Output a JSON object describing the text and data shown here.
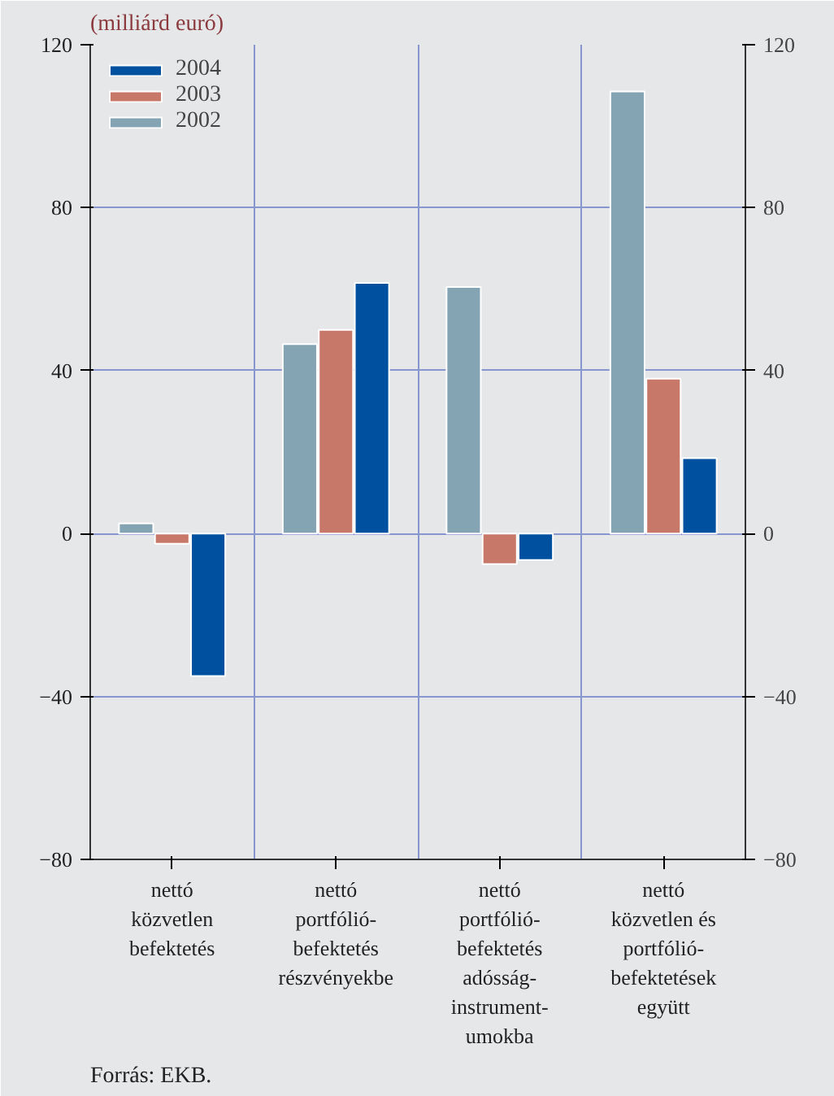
{
  "chart_data": {
    "type": "bar",
    "ylabel": "(milliárd euró)",
    "categories": [
      "nettó\nközvetlen\nbefektetés",
      "nettó\nportfólió-\nbefektetés\nrészvényekbe",
      "nettó\nportfólió-\nbefektetés\nadósság-\ninstrument-\numokba",
      "nettó\nközvetlen és\nportfólió-\nbefektetések\negyütt"
    ],
    "series": [
      {
        "name": "2004",
        "color": "#0050a0",
        "values": [
          -35,
          61.5,
          -6.5,
          18.5
        ]
      },
      {
        "name": "2003",
        "color": "#c87868",
        "values": [
          -2.5,
          50,
          -7.5,
          38
        ]
      },
      {
        "name": "2002",
        "color": "#84a4b4",
        "values": [
          2.5,
          46.5,
          60.5,
          108.5
        ]
      }
    ],
    "ylim": [
      -80,
      120
    ],
    "yticks": [
      -80,
      -40,
      0,
      40,
      80,
      120
    ],
    "y2lim": [
      -80,
      120
    ],
    "y2ticks": [
      -80,
      -40,
      0,
      40,
      80,
      120
    ],
    "grid": true,
    "legend": "top left",
    "annotations": [
      "Forrás: EKB."
    ]
  }
}
